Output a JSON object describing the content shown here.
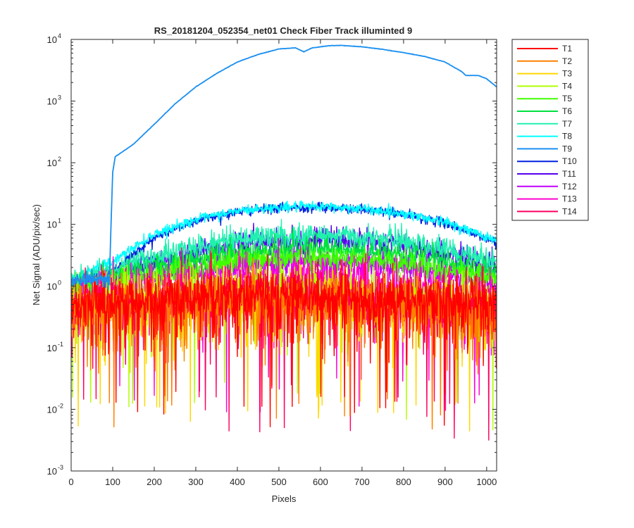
{
  "chart_data": {
    "type": "line",
    "title": "RS_20181204_052354_net01    Check Fiber      Track illuminted 9",
    "xlabel": "Pixels",
    "ylabel": "Net Signal (ADU/pix/sec)",
    "xlim": [
      0,
      1024
    ],
    "ylim": [
      0.001,
      10000
    ],
    "yscale": "log",
    "grid": false,
    "legend_position": "outside-top-right",
    "x_ticks": [
      0,
      100,
      200,
      300,
      400,
      500,
      600,
      700,
      800,
      900,
      1000
    ],
    "x_tick_labels": [
      "0",
      "100",
      "200",
      "300",
      "400",
      "500",
      "600",
      "700",
      "800",
      "900",
      "1000"
    ],
    "y_ticks": [
      0.001,
      0.01,
      0.1,
      1,
      10,
      100,
      1000,
      10000
    ],
    "y_tick_labels": [
      {
        "base": "10",
        "exp": "-3"
      },
      {
        "base": "10",
        "exp": "-2"
      },
      {
        "base": "10",
        "exp": "-1"
      },
      {
        "base": "10",
        "exp": "0"
      },
      {
        "base": "10",
        "exp": "1"
      },
      {
        "base": "10",
        "exp": "2"
      },
      {
        "base": "10",
        "exp": "3"
      },
      {
        "base": "10",
        "exp": "4"
      }
    ],
    "series": [
      {
        "name": "T1",
        "color": "#ff0000",
        "noise": "high",
        "profile": [
          [
            0,
            0.5
          ],
          [
            200,
            0.6
          ],
          [
            400,
            0.7
          ],
          [
            600,
            0.7
          ],
          [
            800,
            0.6
          ],
          [
            1024,
            0.5
          ]
        ]
      },
      {
        "name": "T2",
        "color": "#ff7f00",
        "noise": "high",
        "profile": [
          [
            0,
            0.4
          ],
          [
            200,
            0.5
          ],
          [
            400,
            0.6
          ],
          [
            600,
            0.6
          ],
          [
            800,
            0.5
          ],
          [
            1024,
            0.4
          ]
        ]
      },
      {
        "name": "T3",
        "color": "#ffd700",
        "noise": "high",
        "profile": [
          [
            0,
            0.4
          ],
          [
            200,
            0.5
          ],
          [
            400,
            0.6
          ],
          [
            600,
            0.6
          ],
          [
            800,
            0.5
          ],
          [
            1024,
            0.4
          ]
        ]
      },
      {
        "name": "T4",
        "color": "#b0ff00",
        "noise": "high",
        "profile": [
          [
            0,
            0.5
          ],
          [
            200,
            0.6
          ],
          [
            400,
            0.8
          ],
          [
            600,
            0.8
          ],
          [
            800,
            0.7
          ],
          [
            1024,
            0.5
          ]
        ]
      },
      {
        "name": "T5",
        "color": "#40ff00",
        "noise": "medium",
        "profile": [
          [
            0,
            0.9
          ],
          [
            200,
            1.5
          ],
          [
            400,
            2.6
          ],
          [
            600,
            2.9
          ],
          [
            800,
            2.4
          ],
          [
            1024,
            1.3
          ]
        ]
      },
      {
        "name": "T6",
        "color": "#00e040",
        "noise": "medium",
        "profile": [
          [
            0,
            1.0
          ],
          [
            200,
            2.0
          ],
          [
            400,
            3.6
          ],
          [
            600,
            4.0
          ],
          [
            800,
            3.2
          ],
          [
            1024,
            1.7
          ]
        ]
      },
      {
        "name": "T7",
        "color": "#20f0b0",
        "noise": "medium",
        "profile": [
          [
            0,
            1.2
          ],
          [
            200,
            3.0
          ],
          [
            400,
            6.0
          ],
          [
            600,
            6.8
          ],
          [
            800,
            5.5
          ],
          [
            1024,
            2.6
          ]
        ]
      },
      {
        "name": "T8",
        "color": "#00ffff",
        "noise": "low",
        "profile": [
          [
            0,
            1.3
          ],
          [
            100,
            2.5
          ],
          [
            200,
            7.0
          ],
          [
            300,
            12.0
          ],
          [
            400,
            16.5
          ],
          [
            500,
            19.0
          ],
          [
            600,
            19.5
          ],
          [
            700,
            18.0
          ],
          [
            800,
            15.0
          ],
          [
            900,
            11.0
          ],
          [
            1024,
            5.5
          ]
        ]
      },
      {
        "name": "T9",
        "color": "#1a8ff0",
        "noise": "signal",
        "profile": [
          [
            0,
            1.2
          ],
          [
            92,
            1.3
          ],
          [
            96,
            10
          ],
          [
            100,
            70
          ],
          [
            106,
            125
          ],
          [
            150,
            200
          ],
          [
            200,
            420
          ],
          [
            250,
            900
          ],
          [
            300,
            1700
          ],
          [
            350,
            2800
          ],
          [
            400,
            4300
          ],
          [
            450,
            5700
          ],
          [
            500,
            7000
          ],
          [
            540,
            7300
          ],
          [
            560,
            6300
          ],
          [
            580,
            7300
          ],
          [
            620,
            7900
          ],
          [
            650,
            8000
          ],
          [
            700,
            7600
          ],
          [
            750,
            6900
          ],
          [
            800,
            6100
          ],
          [
            850,
            5300
          ],
          [
            900,
            4300
          ],
          [
            940,
            3000
          ],
          [
            950,
            2600
          ],
          [
            980,
            2600
          ],
          [
            1000,
            2300
          ],
          [
            1024,
            1700
          ]
        ]
      },
      {
        "name": "T10",
        "color": "#0020e0",
        "noise": "low",
        "profile": [
          [
            0,
            1.0
          ],
          [
            100,
            1.8
          ],
          [
            200,
            6.0
          ],
          [
            300,
            11.5
          ],
          [
            400,
            16.0
          ],
          [
            500,
            18.5
          ],
          [
            600,
            19.0
          ],
          [
            700,
            17.5
          ],
          [
            800,
            14.5
          ],
          [
            900,
            10.5
          ],
          [
            1024,
            5.0
          ]
        ]
      },
      {
        "name": "T11",
        "color": "#5500ee",
        "noise": "medium",
        "profile": [
          [
            0,
            0.9
          ],
          [
            200,
            2.5
          ],
          [
            400,
            5.0
          ],
          [
            600,
            5.8
          ],
          [
            800,
            4.7
          ],
          [
            1024,
            2.2
          ]
        ]
      },
      {
        "name": "T12",
        "color": "#c000ff",
        "noise": "medium",
        "profile": [
          [
            0,
            0.8
          ],
          [
            200,
            1.3
          ],
          [
            400,
            2.2
          ],
          [
            600,
            2.4
          ],
          [
            800,
            2.0
          ],
          [
            1024,
            1.0
          ]
        ]
      },
      {
        "name": "T13",
        "color": "#ff00d0",
        "noise": "high",
        "profile": [
          [
            0,
            0.6
          ],
          [
            200,
            0.8
          ],
          [
            400,
            1.1
          ],
          [
            600,
            1.2
          ],
          [
            800,
            1.0
          ],
          [
            1024,
            0.6
          ]
        ]
      },
      {
        "name": "T14",
        "color": "#ff0060",
        "noise": "high",
        "profile": [
          [
            0,
            0.5
          ],
          [
            200,
            0.6
          ],
          [
            400,
            0.7
          ],
          [
            600,
            0.7
          ],
          [
            800,
            0.6
          ],
          [
            1024,
            0.5
          ]
        ]
      }
    ]
  }
}
